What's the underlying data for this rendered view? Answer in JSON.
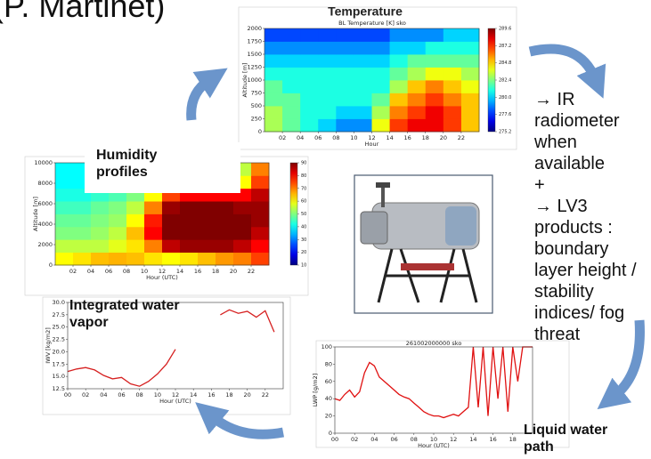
{
  "header": {
    "author": "(P. Martinet)"
  },
  "notes": [
    "→ IR radiometer when available",
    "+",
    "→ LV3 products : boundary layer height / stability indices/ fog threat"
  ],
  "chart_data": [
    {
      "type": "heatmap",
      "title": "Temperature",
      "subtitle": "BL Temperature [K]   sko",
      "xlabel": "Hour",
      "ylabel": "Altitude [m]",
      "x": [
        1,
        3,
        5,
        7,
        9,
        11,
        13,
        15,
        17,
        19,
        21,
        23
      ],
      "y": [
        125,
        375,
        625,
        875,
        1125,
        1375,
        1625,
        1875
      ],
      "z": [
        [
          283,
          282,
          281,
          280,
          279,
          279,
          284,
          287,
          288,
          288,
          287,
          285
        ],
        [
          283,
          282,
          281,
          281,
          280,
          280,
          283,
          286,
          287,
          288,
          287,
          285
        ],
        [
          282,
          282,
          281,
          281,
          281,
          281,
          282,
          285,
          286,
          287,
          286,
          285
        ],
        [
          282,
          281,
          281,
          281,
          281,
          281,
          281,
          283,
          285,
          286,
          285,
          284
        ],
        [
          281,
          281,
          281,
          281,
          281,
          281,
          281,
          282,
          283,
          284,
          284,
          283
        ],
        [
          280,
          280,
          280,
          280,
          280,
          280,
          280,
          281,
          282,
          282,
          282,
          282
        ],
        [
          279,
          279,
          279,
          279,
          279,
          279,
          279,
          280,
          280,
          281,
          281,
          281
        ],
        [
          278,
          278,
          278,
          278,
          278,
          278,
          278,
          279,
          279,
          279,
          280,
          280
        ]
      ],
      "xlim": [
        0,
        24
      ],
      "ylim": [
        0,
        2000
      ],
      "xticks": [
        {
          "value": 2,
          "label": "02"
        },
        {
          "value": 4,
          "label": "04"
        },
        {
          "value": 6,
          "label": "06"
        },
        {
          "value": 8,
          "label": "08"
        },
        10,
        12,
        14,
        16,
        18,
        20,
        22
      ],
      "yticks": [
        0,
        250,
        500,
        750,
        1000,
        1250,
        1500,
        1750,
        2000
      ],
      "zlim": [
        275.2,
        289.6
      ],
      "zticks": [
        275.2,
        277.6,
        {
          "value": 280,
          "label": "280.0"
        },
        282.4,
        284.8,
        287.2,
        289.6
      ]
    },
    {
      "type": "heatmap",
      "title": "Humidity profiles",
      "xlabel": "Hour (UTC)",
      "ylabel": "Altitude [m]",
      "x": [
        1,
        3,
        5,
        7,
        9,
        11,
        13,
        15,
        17,
        19,
        21,
        23
      ],
      "y": [
        625,
        1875,
        3125,
        4375,
        5625,
        6875,
        8125,
        9375
      ],
      "z": [
        [
          60,
          62,
          65,
          66,
          65,
          62,
          60,
          62,
          65,
          68,
          70,
          75
        ],
        [
          55,
          55,
          55,
          58,
          62,
          70,
          85,
          88,
          88,
          88,
          85,
          80
        ],
        [
          50,
          50,
          52,
          55,
          65,
          80,
          92,
          92,
          92,
          92,
          90,
          85
        ],
        [
          48,
          48,
          50,
          52,
          60,
          78,
          92,
          92,
          92,
          92,
          90,
          88
        ],
        [
          45,
          45,
          48,
          50,
          55,
          70,
          88,
          90,
          90,
          90,
          88,
          88
        ],
        [
          42,
          42,
          44,
          46,
          50,
          60,
          75,
          80,
          80,
          80,
          80,
          85
        ],
        [
          40,
          40,
          40,
          40,
          40,
          45,
          50,
          50,
          50,
          50,
          60,
          75
        ],
        [
          40,
          40,
          40,
          40,
          40,
          40,
          42,
          42,
          42,
          42,
          55,
          70
        ]
      ],
      "xlim": [
        0,
        24
      ],
      "ylim": [
        0,
        10000
      ],
      "xticks": [
        {
          "value": 2,
          "label": "02"
        },
        {
          "value": 4,
          "label": "04"
        },
        {
          "value": 6,
          "label": "06"
        },
        {
          "value": 8,
          "label": "08"
        },
        10,
        12,
        14,
        16,
        18,
        20,
        22
      ],
      "yticks": [
        0,
        2000,
        4000,
        6000,
        8000,
        10000
      ],
      "zlim": [
        10,
        90
      ],
      "zticks": [
        10,
        20,
        30,
        40,
        50,
        60,
        70,
        80,
        90
      ]
    },
    {
      "type": "line",
      "title": "Integrated water vapor",
      "xlabel": "Hour (UTC)",
      "ylabel": "IWV [kg/m2]",
      "color": "#d62020",
      "x": [
        0,
        1,
        2,
        3,
        4,
        5,
        6,
        7,
        8,
        9,
        10,
        11,
        12,
        13,
        14,
        15,
        16,
        17,
        18,
        19,
        20,
        21,
        22,
        23
      ],
      "values": [
        16.0,
        16.5,
        16.8,
        16.3,
        15.2,
        14.5,
        14.8,
        13.5,
        13.0,
        14.0,
        15.5,
        17.5,
        20.5,
        null,
        null,
        null,
        null,
        27.5,
        28.5,
        27.8,
        28.2,
        27.0,
        28.3,
        24.0
      ],
      "xlim": [
        0,
        24
      ],
      "ylim": [
        12.5,
        30
      ],
      "xticks": [
        {
          "value": 0,
          "label": "00"
        },
        {
          "value": 2,
          "label": "02"
        },
        {
          "value": 4,
          "label": "04"
        },
        {
          "value": 6,
          "label": "06"
        },
        {
          "value": 8,
          "label": "08"
        },
        10,
        12,
        14,
        16,
        18,
        20,
        22
      ],
      "yticks": [
        12.5,
        {
          "value": 15,
          "label": "15.0"
        },
        17.5,
        {
          "value": 20,
          "label": "20.0"
        },
        22.5,
        {
          "value": 25,
          "label": "25.0"
        },
        27.5,
        {
          "value": 30,
          "label": "30.0"
        }
      ]
    },
    {
      "type": "line",
      "title": "Liquid water path",
      "subtitle": "261002000000   sko",
      "xlabel": "Hour (UTC)",
      "ylabel": "LWP [g/m2]",
      "color": "#e01010",
      "x": [
        0,
        0.5,
        1,
        1.5,
        2,
        2.5,
        3,
        3.5,
        4,
        4.5,
        5,
        5.5,
        6,
        6.5,
        7,
        7.5,
        8,
        8.5,
        9,
        9.5,
        10,
        10.5,
        11,
        11.5,
        12,
        12.5,
        13,
        13.5,
        14,
        14.5,
        15,
        15.5,
        16,
        16.5,
        17,
        17.5,
        18,
        18.5,
        19,
        19.5,
        20
      ],
      "values": [
        40,
        38,
        45,
        50,
        42,
        48,
        70,
        82,
        78,
        65,
        60,
        55,
        50,
        45,
        42,
        40,
        35,
        30,
        25,
        22,
        20,
        20,
        18,
        20,
        22,
        20,
        25,
        30,
        100,
        30,
        100,
        20,
        100,
        40,
        100,
        25,
        100,
        60,
        100,
        100,
        100
      ],
      "xlim": [
        0,
        20
      ],
      "ylim": [
        0,
        100
      ],
      "xticks": [
        {
          "value": 0,
          "label": "00"
        },
        {
          "value": 2,
          "label": "02"
        },
        {
          "value": 4,
          "label": "04"
        },
        {
          "value": 6,
          "label": "06"
        },
        {
          "value": 8,
          "label": "08"
        },
        10,
        12,
        14,
        16,
        18
      ],
      "yticks": [
        0,
        20,
        40,
        60,
        80,
        100
      ]
    }
  ]
}
